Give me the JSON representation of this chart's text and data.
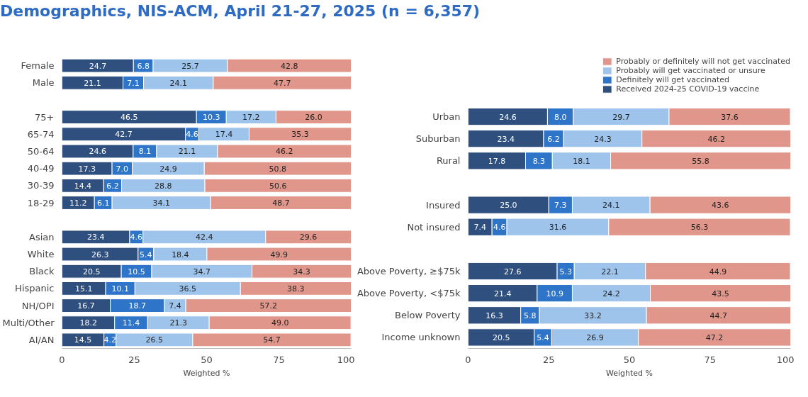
{
  "chart_data": [
    {
      "type": "bar",
      "orientation": "horizontal",
      "stacked": true,
      "title": "Demographics, NIS-ACM, April 21-27, 2025 (n = 6,357)",
      "xlabel": "Weighted %",
      "categories": [
        "Female",
        "Male",
        null,
        "75+",
        "65-74",
        "50-64",
        "40-49",
        "30-39",
        "18-29",
        null,
        "Asian",
        "White",
        "Black",
        "Hispanic",
        "NH/OPI",
        "Multi/Other",
        "AI/AN"
      ],
      "series": [
        {
          "color": "#2f4f7f",
          "values": [
            24.7,
            21.1,
            null,
            46.5,
            42.7,
            24.6,
            17.3,
            14.4,
            11.2,
            null,
            23.4,
            26.3,
            20.5,
            15.1,
            16.7,
            18.2,
            14.5
          ],
          "value_labels": [
            "24.7",
            "21.1",
            null,
            "46.5",
            "42.7",
            "24.6",
            "17.3",
            "14.4",
            "11.2",
            null,
            "23.4",
            "26.3",
            "20.5",
            "15.1",
            "16.7",
            "18.2",
            "14.5"
          ]
        },
        {
          "color": "#2e75c9",
          "values": [
            6.8,
            7.1,
            null,
            10.3,
            4.6,
            8.1,
            7.0,
            6.2,
            6.1,
            null,
            4.6,
            5.4,
            10.5,
            10.1,
            18.7,
            11.4,
            4.2
          ],
          "value_labels": [
            "6.8",
            "7.1",
            null,
            "10.3",
            "4.6",
            "8.1",
            "7.0",
            "6.2",
            "6.1",
            null,
            "4.6",
            "5.4",
            "10.5",
            "10.1",
            "18.7",
            "11.4",
            "4.2"
          ]
        },
        {
          "color": "#9fc4ec",
          "values": [
            25.7,
            24.1,
            null,
            17.2,
            17.4,
            21.1,
            24.9,
            28.8,
            34.1,
            null,
            42.4,
            18.4,
            34.7,
            36.5,
            7.4,
            21.3,
            26.5
          ],
          "value_labels": [
            "25.7",
            "24.1",
            null,
            "17.2",
            "17.4",
            "21.1",
            "24.9",
            "28.8",
            "34.1",
            null,
            "42.4",
            "18.4",
            "34.7",
            "36.5",
            "7.4",
            "21.3",
            "26.5"
          ]
        },
        {
          "color": "#e0968a",
          "values": [
            42.8,
            47.7,
            null,
            26.0,
            35.3,
            46.2,
            50.8,
            50.6,
            48.7,
            null,
            29.6,
            49.9,
            34.3,
            38.3,
            57.2,
            49.0,
            54.7
          ],
          "value_labels": [
            "42.8",
            "47.7",
            null,
            "26.0",
            "35.3",
            "46.2",
            "50.8",
            "50.6",
            "48.7",
            null,
            "29.6",
            "49.9",
            "34.3",
            "38.3",
            "57.2",
            "49.0",
            "54.7"
          ]
        }
      ],
      "xlim": [
        0,
        100
      ],
      "xticks": [
        0,
        25,
        50,
        75,
        100
      ],
      "grid": false
    },
    {
      "type": "bar",
      "orientation": "horizontal",
      "stacked": true,
      "xlabel": "Weighted %",
      "categories": [
        "Urban",
        "Suburban",
        "Rural",
        null,
        "Insured",
        "Not insured",
        null,
        "Above Poverty, ≥$75k",
        "Above Poverty, <$75k",
        "Below Poverty",
        "Income unknown"
      ],
      "series": [
        {
          "name": "Received 2024-25 COVID-19 vaccine",
          "color": "#2f4f7f",
          "values": [
            24.6,
            23.4,
            17.8,
            null,
            25.0,
            7.4,
            null,
            27.6,
            21.4,
            16.3,
            20.5
          ],
          "value_labels": [
            "24.6",
            "23.4",
            "17.8",
            null,
            "25.0",
            "7.4",
            null,
            "27.6",
            "21.4",
            "16.3",
            "20.5"
          ]
        },
        {
          "name": "Definitely will get vaccinated",
          "color": "#2e75c9",
          "values": [
            8.0,
            6.2,
            8.3,
            null,
            7.3,
            4.6,
            null,
            5.3,
            10.9,
            5.8,
            5.4
          ],
          "value_labels": [
            "8.0",
            "6.2",
            "8.3",
            null,
            "7.3",
            "4.6",
            null,
            "5.3",
            "10.9",
            "5.8",
            "5.4"
          ]
        },
        {
          "name": "Probably will get vaccinated or unsure",
          "color": "#9fc4ec",
          "values": [
            29.7,
            24.3,
            18.1,
            null,
            24.1,
            31.6,
            null,
            22.1,
            24.2,
            33.2,
            26.9
          ],
          "value_labels": [
            "29.7",
            "24.3",
            "18.1",
            null,
            "24.1",
            "31.6",
            null,
            "22.1",
            "24.2",
            "33.2",
            "26.9"
          ]
        },
        {
          "name": "Probably or definitely will not get vaccinated",
          "color": "#e0968a",
          "values": [
            37.6,
            46.2,
            55.8,
            null,
            43.6,
            56.3,
            null,
            44.9,
            43.5,
            44.7,
            47.2
          ],
          "value_labels": [
            "37.6",
            "46.2",
            "55.8",
            null,
            "43.6",
            "56.3",
            null,
            "44.9",
            "43.5",
            "44.7",
            "47.2"
          ]
        }
      ],
      "xlim": [
        0,
        100
      ],
      "xticks": [
        0,
        25,
        50,
        75,
        100
      ],
      "grid": false,
      "legend": "top right"
    }
  ]
}
